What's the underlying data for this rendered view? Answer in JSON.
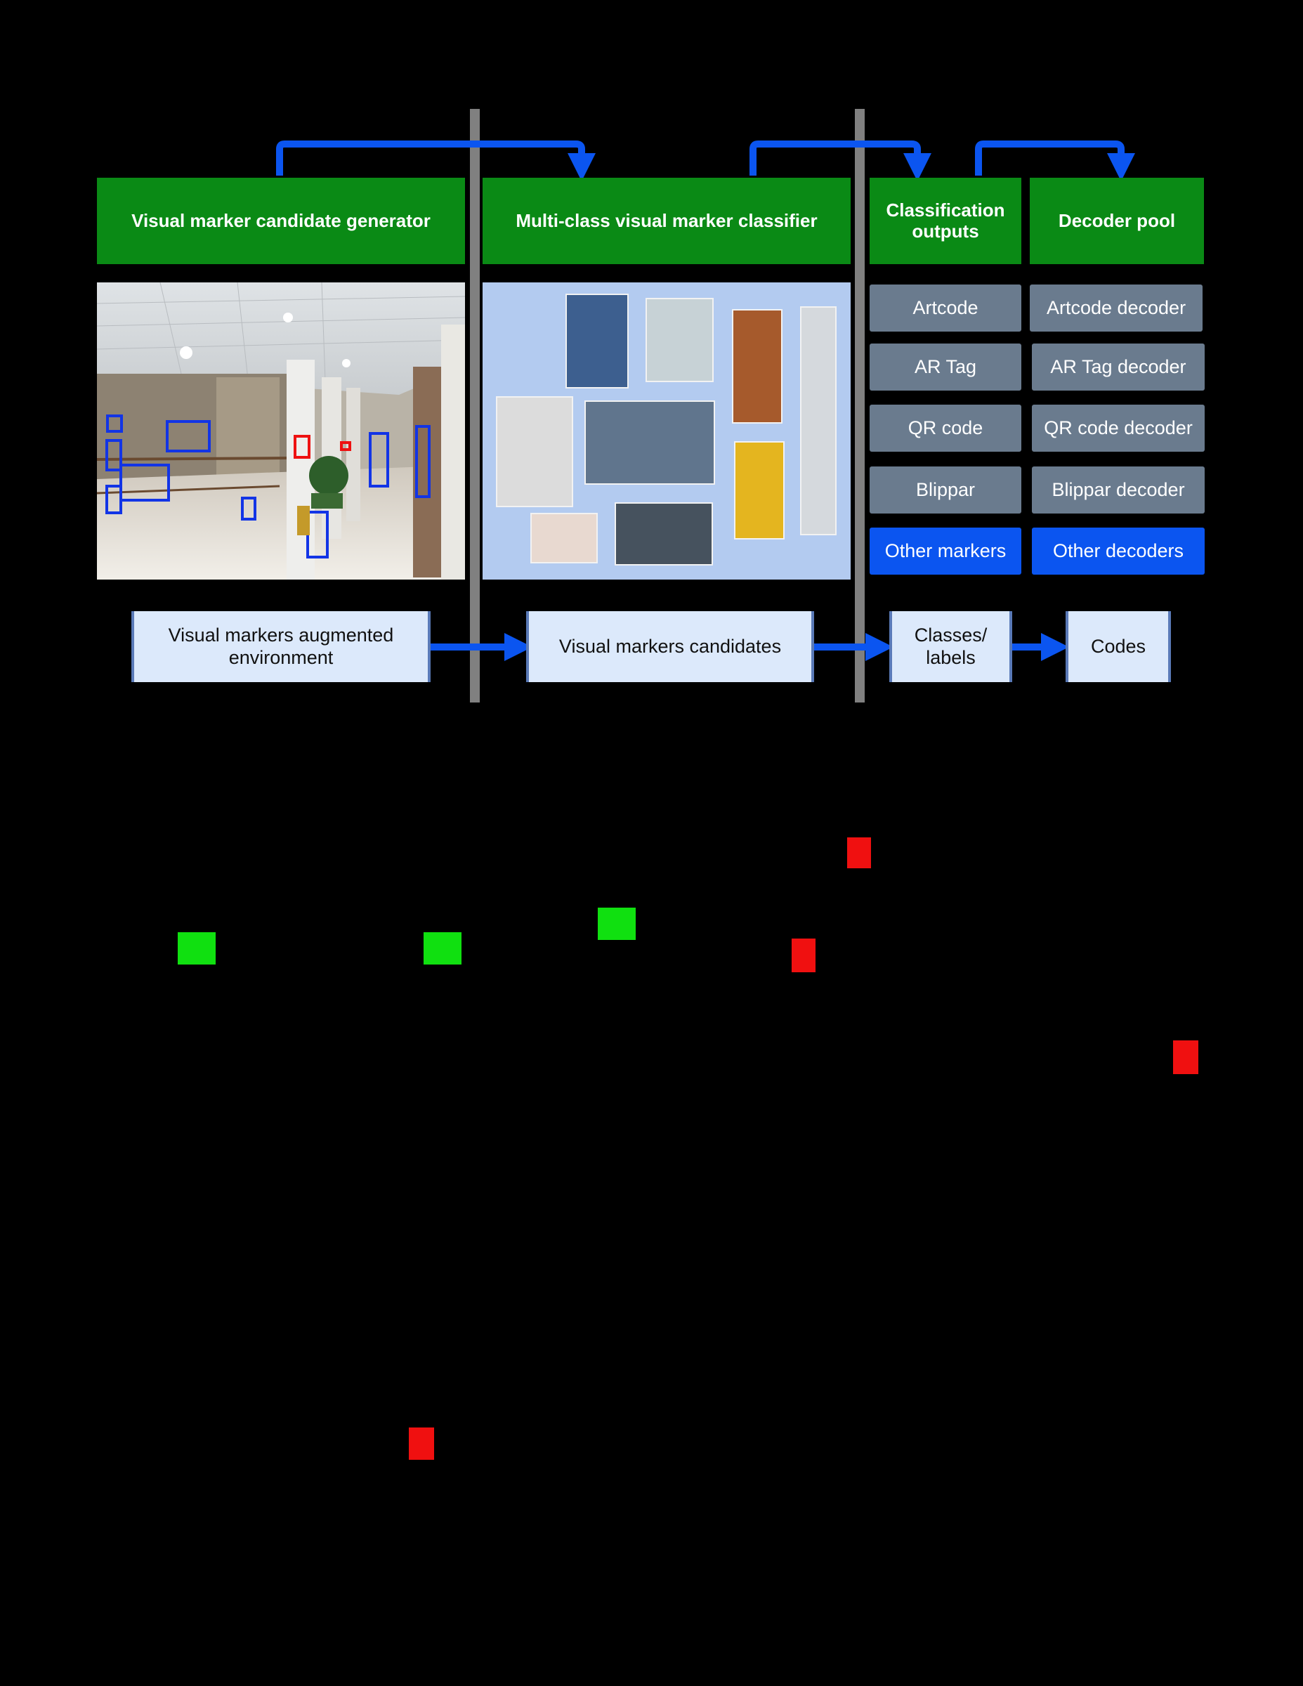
{
  "headers": {
    "generator": "Visual marker candidate generator",
    "classifier": "Multi-class visual marker classifier",
    "outputs": "Classification outputs",
    "decoders": "Decoder pool"
  },
  "classification_outputs": [
    "Artcode",
    "AR Tag",
    "QR code",
    "Blippar",
    "Other markers"
  ],
  "decoder_pool": [
    "Artcode decoder",
    "AR Tag decoder",
    "QR code decoder",
    "Blippar decoder",
    "Other decoders"
  ],
  "flow": {
    "environment": "Visual markers augmented environment",
    "candidates": "Visual markers candidates",
    "classes": "Classes/ labels",
    "codes": "Codes"
  },
  "images": {
    "left": "corridor-photo-with-detected-markers",
    "middle": "cropped-marker-candidates-collage"
  },
  "colors": {
    "header_green": "#0a8a15",
    "arrow_blue": "#0b55f0",
    "class_gray": "#6a7b8e",
    "flow_box": "#dce9fb",
    "divider_gray": "#808080"
  }
}
